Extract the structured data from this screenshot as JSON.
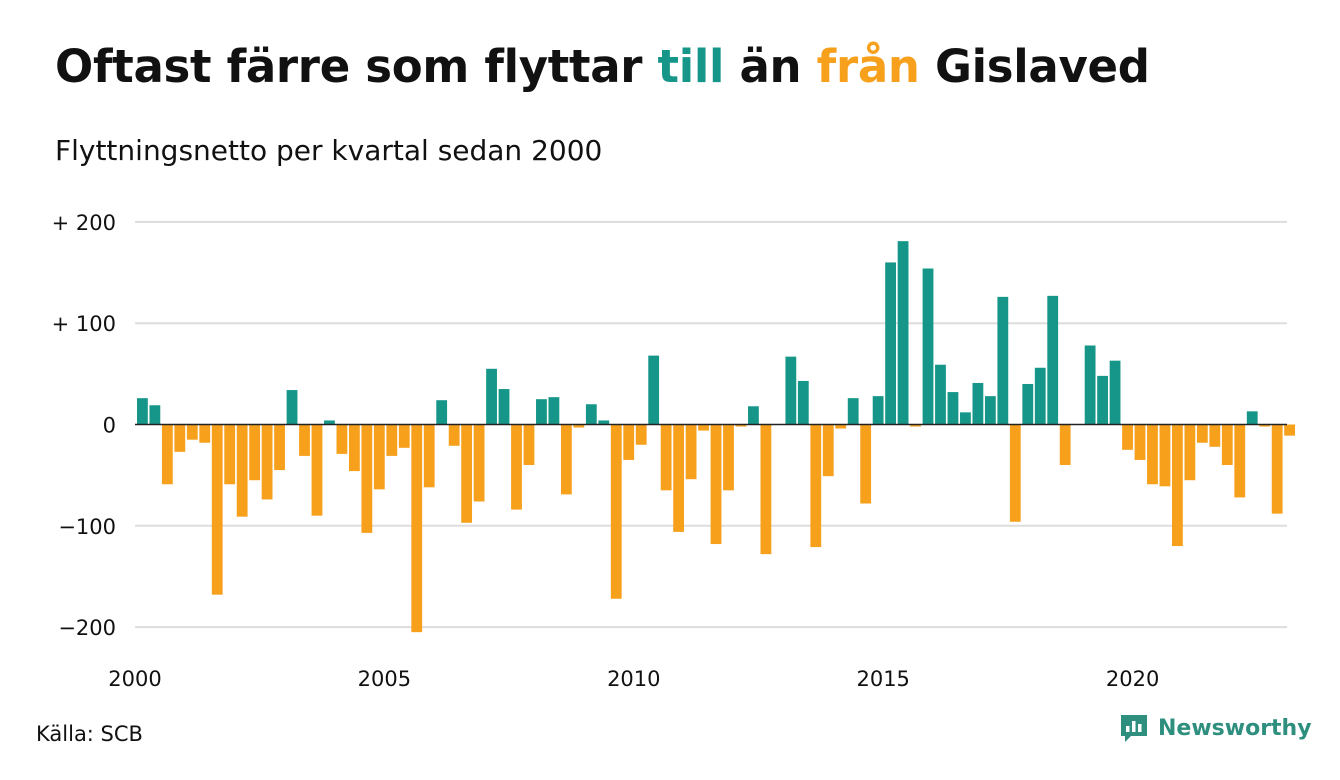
{
  "header": {
    "title_parts": [
      "Oftast färre som flyttar ",
      "till",
      " än ",
      "från",
      " Gislaved"
    ],
    "subtitle": "Flyttningsnetto per kvartal sedan 2000"
  },
  "footer": {
    "source": "Källa: SCB",
    "brand": "Newsworthy",
    "brand_icon": "bar-chart-speech-icon"
  },
  "colors": {
    "positive": "#169688",
    "negative": "#f6a01c",
    "grid": "#dddddd",
    "text": "#111111"
  },
  "chart_data": {
    "type": "bar",
    "title": "Oftast färre som flyttar till än från Gislaved",
    "subtitle": "Flyttningsnetto per kvartal sedan 2000",
    "xlabel": "",
    "ylabel": "",
    "x_start": "2000 Q1",
    "x_ticks": [
      "2000",
      "2005",
      "2010",
      "2015",
      "2020"
    ],
    "y_ticks": [
      {
        "value": 200,
        "label": "+ 200"
      },
      {
        "value": 100,
        "label": "+ 100"
      },
      {
        "value": 0,
        "label": "0"
      },
      {
        "value": -100,
        "label": "−100"
      },
      {
        "value": -200,
        "label": "−200"
      }
    ],
    "ylim": [
      -205,
      205
    ],
    "grid": true,
    "legend": "none",
    "values": [
      26,
      19,
      -59,
      -27,
      -15,
      -18,
      -168,
      -59,
      -91,
      -55,
      -74,
      -45,
      34,
      -31,
      -90,
      4,
      -29,
      -46,
      -107,
      -64,
      -31,
      -23,
      -205,
      -62,
      24,
      -21,
      -97,
      -76,
      55,
      35,
      -84,
      -40,
      25,
      27,
      -69,
      -3,
      20,
      4,
      -172,
      -35,
      -20,
      68,
      -65,
      -106,
      -54,
      -6,
      -118,
      -65,
      -2,
      18,
      -128,
      0,
      67,
      43,
      -121,
      -51,
      -4,
      26,
      -78,
      28,
      160,
      181,
      -2,
      154,
      59,
      32,
      12,
      41,
      28,
      126,
      -96,
      40,
      56,
      127,
      -40,
      0,
      78,
      48,
      63,
      -25,
      -35,
      -59,
      -61,
      -120,
      -55,
      -18,
      -22,
      -40,
      -72,
      13,
      -2,
      -88,
      -11
    ]
  }
}
